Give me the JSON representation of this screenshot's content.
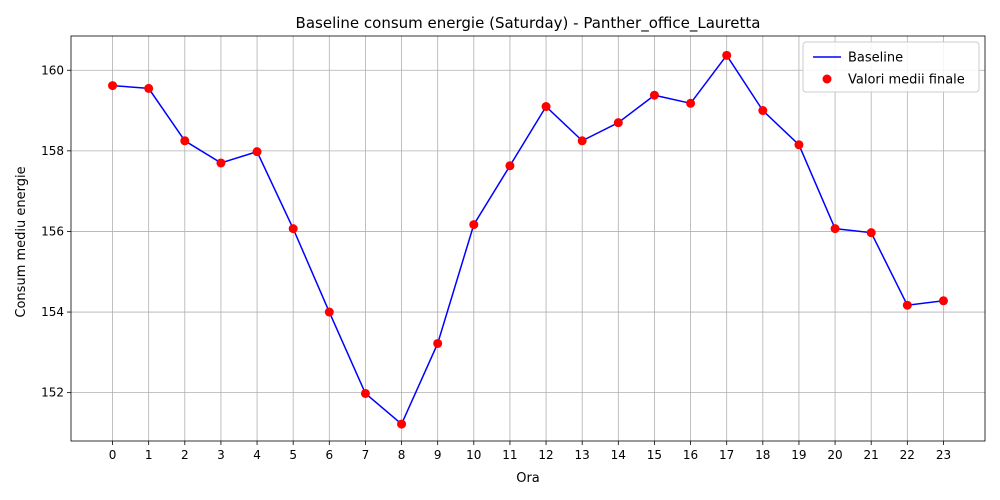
{
  "chart_data": {
    "type": "line",
    "title": "Baseline consum energie (Saturday) - Panther_office_Lauretta",
    "xlabel": "Ora",
    "ylabel": "Consum mediu energie",
    "x": [
      0,
      1,
      2,
      3,
      4,
      5,
      6,
      7,
      8,
      9,
      10,
      11,
      12,
      13,
      14,
      15,
      16,
      17,
      18,
      19,
      20,
      21,
      22,
      23
    ],
    "x_tick_labels": [
      "0",
      "1",
      "2",
      "3",
      "4",
      "5",
      "6",
      "7",
      "8",
      "9",
      "10",
      "11",
      "12",
      "13",
      "14",
      "15",
      "16",
      "17",
      "18",
      "19",
      "20",
      "21",
      "22",
      "23"
    ],
    "xlim": [
      -1.15,
      24.15
    ],
    "ylim": [
      150.8,
      160.85
    ],
    "y_ticks": [
      152,
      154,
      156,
      158,
      160
    ],
    "y_tick_labels": [
      "152",
      "154",
      "156",
      "158",
      "160"
    ],
    "grid": true,
    "legend_position": "top-right",
    "series": [
      {
        "name": "Baseline",
        "kind": "line",
        "color": "#0000ff",
        "values": [
          159.62,
          159.55,
          158.25,
          157.7,
          157.98,
          156.07,
          154.0,
          151.98,
          151.22,
          153.22,
          156.17,
          157.63,
          159.1,
          158.25,
          158.7,
          159.38,
          159.18,
          160.37,
          159.0,
          158.15,
          156.07,
          155.97,
          154.17,
          154.28
        ]
      },
      {
        "name": "Valori medii finale",
        "kind": "scatter",
        "color": "#ff0000",
        "values": [
          159.62,
          159.55,
          158.25,
          157.7,
          157.98,
          156.07,
          154.0,
          151.98,
          151.22,
          153.22,
          156.17,
          157.63,
          159.1,
          158.25,
          158.7,
          159.38,
          159.18,
          160.37,
          159.0,
          158.15,
          156.07,
          155.97,
          154.17,
          154.28
        ]
      }
    ]
  }
}
